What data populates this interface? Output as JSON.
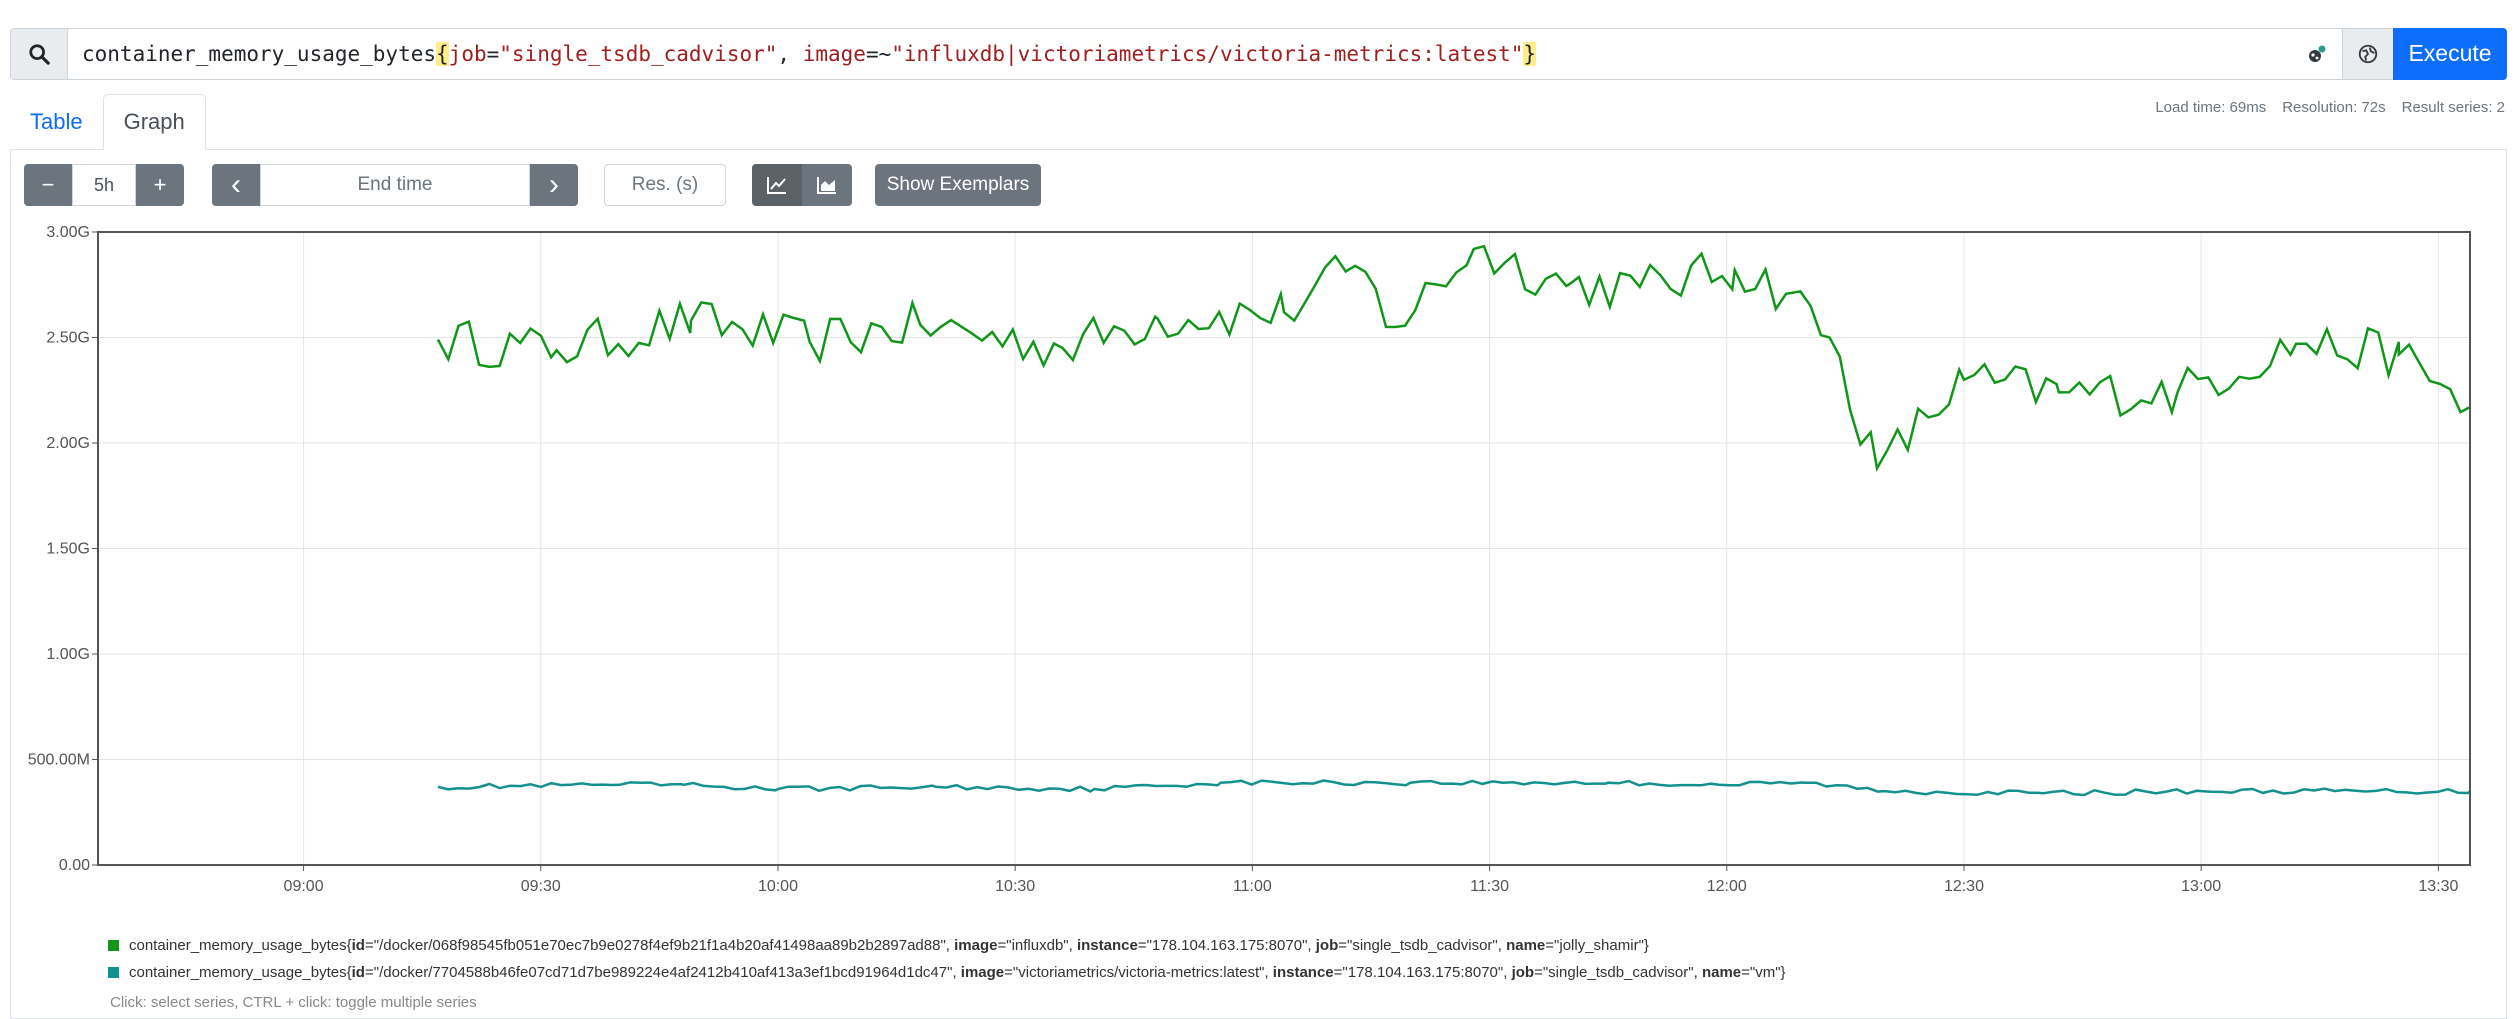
{
  "query": {
    "metric": "container_memory_usage_bytes",
    "open_brace": "{",
    "label1": "job",
    "op1": "=",
    "value1": "\"single_tsdb_cadvisor\"",
    "sep": ", ",
    "label2": "image",
    "op2": "=~",
    "value2": "\"influxdb|victoriametrics/victoria-metrics:latest\"",
    "close_brace": "}",
    "execute_label": "Execute"
  },
  "tabs": {
    "table": "Table",
    "graph": "Graph"
  },
  "stats": {
    "load_time": "Load time: 69ms",
    "resolution": "Resolution: 72s",
    "result_series": "Result series: 2"
  },
  "controls": {
    "minus": "−",
    "range": "5h",
    "plus": "+",
    "prev": "‹",
    "end_time_placeholder": "End time",
    "next": "›",
    "res_placeholder": "Res. (s)",
    "show_exemplars": "Show Exemplars"
  },
  "legend": {
    "series": [
      {
        "color": "#109618",
        "metric": "container_memory_usage_bytes",
        "id": "/docker/068f98545fb051e70ec7b9e0278f4ef9b21f1a4b20af41498aa89b2b2897ad88",
        "image": "influxdb",
        "instance": "178.104.163.175:8070",
        "job": "single_tsdb_cadvisor",
        "name": "jolly_shamir"
      },
      {
        "color": "#13918f",
        "metric": "container_memory_usage_bytes",
        "id": "/docker/7704588b46fe07cd71d7be989224e4af2412b410af413a3ef1bcd91964d1dc47",
        "image": "victoriametrics/victoria-metrics:latest",
        "instance": "178.104.163.175:8070",
        "job": "single_tsdb_cadvisor",
        "name": "vm"
      }
    ]
  },
  "hint": "Click: select series, CTRL + click: toggle multiple series",
  "chart_data": {
    "type": "line",
    "x_ticks": [
      "09:00",
      "09:30",
      "10:00",
      "10:30",
      "11:00",
      "11:30",
      "12:00",
      "12:30",
      "13:00",
      "13:30"
    ],
    "y_ticks": [
      "0.00",
      "500.00M",
      "1.00G",
      "1.50G",
      "2.00G",
      "2.50G",
      "3.00G"
    ],
    "ylim": [
      0,
      3.0
    ],
    "xlim": [
      "08:34",
      "13:34"
    ],
    "series": [
      {
        "color": "#109618",
        "x": [
          "09:17",
          "09:32",
          "09:49",
          "10:04",
          "10:18",
          "10:36",
          "10:48",
          "11:04",
          "11:13",
          "11:18",
          "11:28",
          "11:40",
          "11:49",
          "12:01",
          "12:08",
          "12:13",
          "12:19",
          "12:30",
          "12:42",
          "12:57",
          "13:12",
          "13:25",
          "13:34"
        ],
        "values": [
          2.49,
          2.44,
          2.58,
          2.48,
          2.56,
          2.45,
          2.59,
          2.62,
          2.84,
          2.55,
          2.92,
          2.75,
          2.74,
          2.82,
          2.71,
          2.5,
          1.88,
          2.3,
          2.24,
          2.24,
          2.47,
          2.42,
          2.17
        ]
      },
      {
        "color": "#13918f",
        "x": [
          "09:17",
          "09:40",
          "09:48",
          "10:00",
          "10:20",
          "10:40",
          "10:56",
          "11:20",
          "11:45",
          "11:59",
          "12:10",
          "12:20",
          "12:40",
          "13:00",
          "13:34"
        ],
        "values": [
          0.37,
          0.38,
          0.38,
          0.36,
          0.37,
          0.36,
          0.39,
          0.39,
          0.39,
          0.38,
          0.39,
          0.35,
          0.34,
          0.35,
          0.35
        ]
      }
    ]
  }
}
